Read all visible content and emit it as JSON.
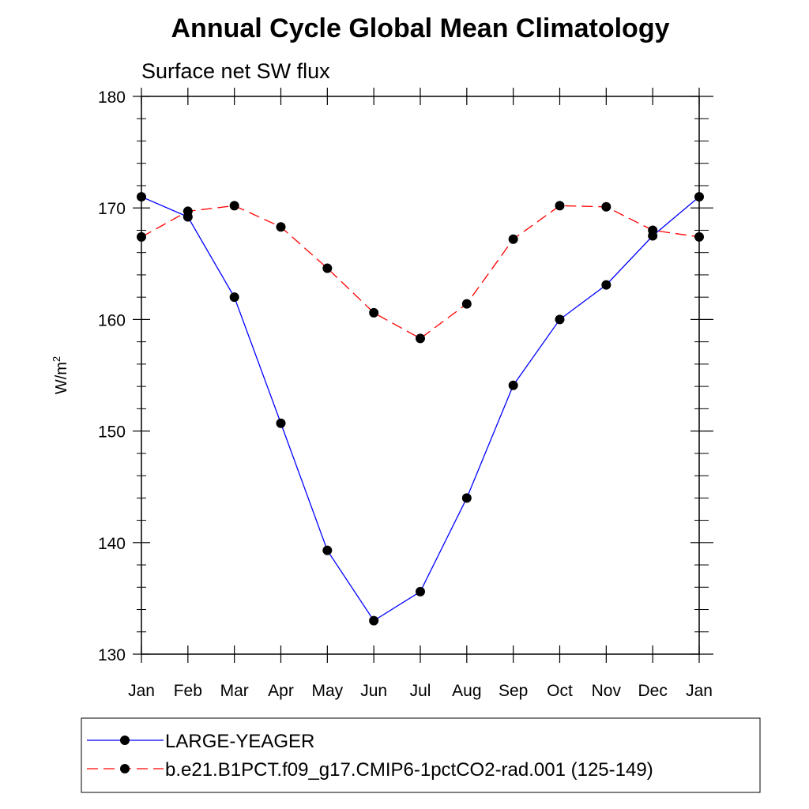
{
  "chart_data": {
    "type": "line",
    "title": "Annual Cycle Global Mean Climatology",
    "subtitle": "Surface net SW flux",
    "xlabel": "",
    "ylabel_base": "W/m",
    "ylabel_sup": "2",
    "categories": [
      "Jan",
      "Feb",
      "Mar",
      "Apr",
      "May",
      "Jun",
      "Jul",
      "Aug",
      "Sep",
      "Oct",
      "Nov",
      "Dec",
      "Jan"
    ],
    "ylim": [
      130,
      180
    ],
    "yticks": [
      "130",
      "140",
      "150",
      "160",
      "170",
      "180"
    ],
    "grid": false,
    "legend_position": "bottom",
    "series": [
      {
        "name": "LARGE-YEAGER",
        "color": "#0000ff",
        "line_style": "solid",
        "marker": "filled-circle",
        "values": [
          171.0,
          169.2,
          162.0,
          150.7,
          139.3,
          133.0,
          135.6,
          144.0,
          154.1,
          160.0,
          163.1,
          167.5,
          171.0
        ]
      },
      {
        "name": "b.e21.B1PCT.f09_g17.CMIP6-1pctCO2-rad.001 (125-149)",
        "color": "#ff0000",
        "line_style": "dashed",
        "marker": "filled-circle",
        "values": [
          167.4,
          169.7,
          170.2,
          168.3,
          164.6,
          160.6,
          158.3,
          161.4,
          167.2,
          170.2,
          170.1,
          168.0,
          167.4
        ]
      }
    ]
  }
}
